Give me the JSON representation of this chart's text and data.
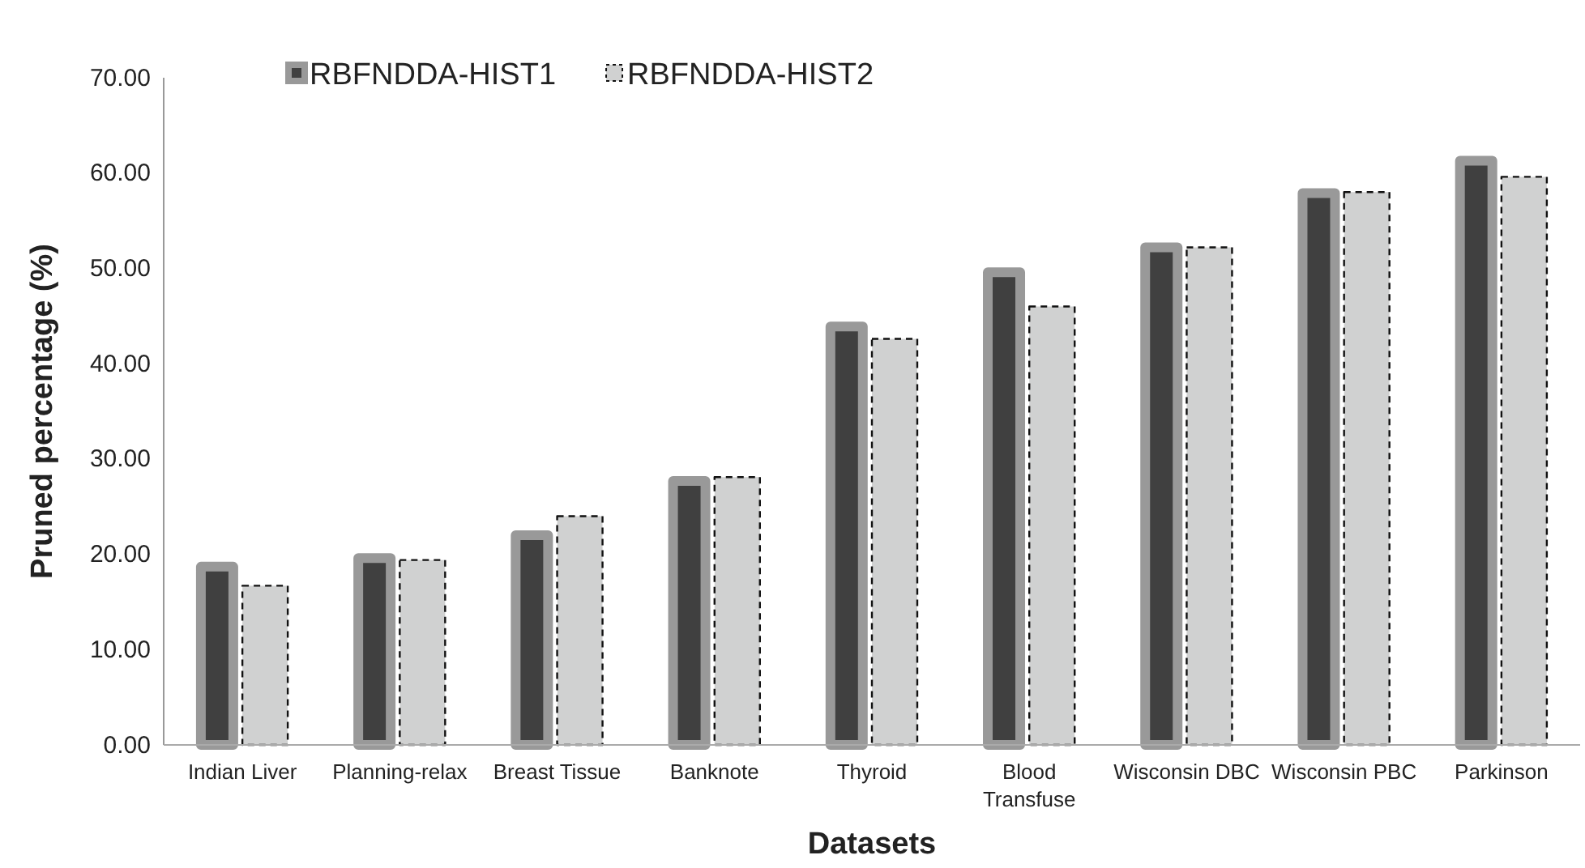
{
  "chart_data": {
    "type": "bar",
    "xlabel": "Datasets",
    "ylabel": "Pruned percentage (%)",
    "categories": [
      "Indian Liver",
      "Planning-relax",
      "Breast Tissue",
      "Banknote",
      "Thyroid",
      "Blood Transfuse",
      "Wisconsin DBC",
      "Wisconsin PBC",
      "Parkinson"
    ],
    "series": [
      {
        "name": "RBFNDDA-HIST1",
        "color": "#404040",
        "values": [
          18.7,
          19.6,
          22.0,
          27.7,
          43.9,
          49.6,
          52.2,
          57.9,
          61.3
        ]
      },
      {
        "name": "RBFNDDA-HIST2",
        "color": "#d0d1d1",
        "values": [
          16.7,
          19.4,
          24.0,
          28.1,
          42.6,
          46.0,
          52.2,
          58.0,
          59.6
        ]
      }
    ],
    "ylim": [
      0,
      70
    ],
    "yticks": [
      {
        "value": 0,
        "label": "0.00"
      },
      {
        "value": 10,
        "label": "10.00"
      },
      {
        "value": 20,
        "label": "20.00"
      },
      {
        "value": 30,
        "label": "30.00"
      },
      {
        "value": 40,
        "label": "40.00"
      },
      {
        "value": 50,
        "label": "50.00"
      },
      {
        "value": 60,
        "label": "60.00"
      },
      {
        "value": 70,
        "label": "70.00"
      }
    ],
    "legend": "top left"
  }
}
